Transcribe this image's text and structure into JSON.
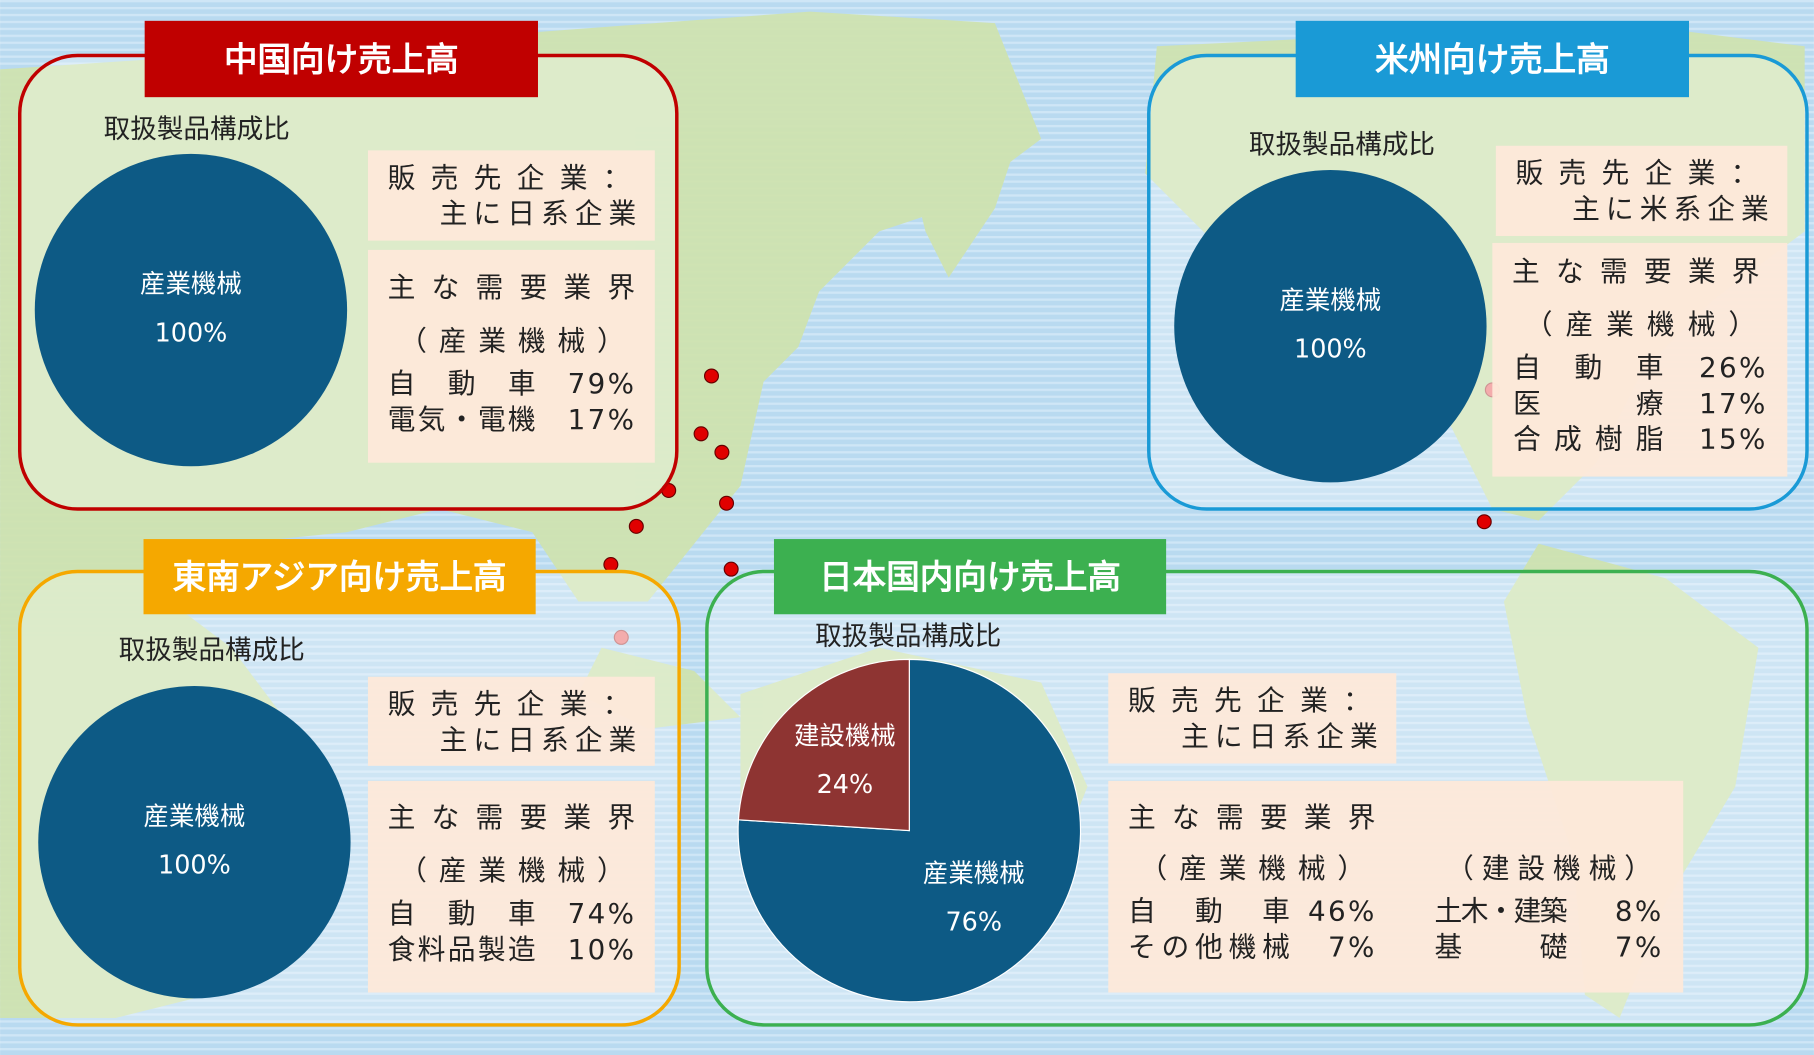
{
  "chart_data": [
    {
      "type": "pie",
      "title": "中国向け売上高",
      "title_color": "#c00000",
      "subtitle": "取扱製品構成比",
      "categories": [
        "産業機械"
      ],
      "values": [
        100
      ],
      "value_labels": [
        "100%"
      ],
      "colors": [
        "#0d5a85"
      ],
      "customer_label": "販売先企業：",
      "customer": "主に日系企業",
      "industry_heading": "主な需要業界",
      "industry_groups": [
        {
          "heading": "（産業機械）",
          "rows": [
            [
              "自動車",
              "79%"
            ],
            [
              "電気・電機",
              "17%"
            ]
          ]
        }
      ]
    },
    {
      "type": "pie",
      "title": "米州向け売上高",
      "title_color": "#1a9ad6",
      "subtitle": "取扱製品構成比",
      "categories": [
        "産業機械"
      ],
      "values": [
        100
      ],
      "value_labels": [
        "100%"
      ],
      "colors": [
        "#0d5a85"
      ],
      "customer_label": "販売先企業：",
      "customer": "主に米系企業",
      "industry_heading": "主な需要業界",
      "industry_groups": [
        {
          "heading": "（産業機械）",
          "rows": [
            [
              "自動車",
              "26%"
            ],
            [
              "医療",
              "17%"
            ],
            [
              "合成樹脂",
              "15%"
            ]
          ]
        }
      ]
    },
    {
      "type": "pie",
      "title": "東南アジア向け売上高",
      "title_color": "#f5a800",
      "subtitle": "取扱製品構成比",
      "categories": [
        "産業機械"
      ],
      "values": [
        100
      ],
      "value_labels": [
        "100%"
      ],
      "colors": [
        "#0d5a85"
      ],
      "customer_label": "販売先企業：",
      "customer": "主に日系企業",
      "industry_heading": "主な需要業界",
      "industry_groups": [
        {
          "heading": "（産業機械）",
          "rows": [
            [
              "自動車",
              "74%"
            ],
            [
              "食料品製造",
              "10%"
            ]
          ]
        }
      ]
    },
    {
      "type": "pie",
      "title": "日本国内向け売上高",
      "title_color": "#3cb050",
      "subtitle": "取扱製品構成比",
      "categories": [
        "産業機械",
        "建設機械"
      ],
      "values": [
        76,
        24
      ],
      "value_labels": [
        "76%",
        "24%"
      ],
      "colors": [
        "#0d5a85",
        "#8e3432"
      ],
      "customer_label": "販売先企業：",
      "customer": "主に日系企業",
      "industry_heading": "主な需要業界",
      "industry_groups": [
        {
          "heading": "（産業機械）",
          "rows": [
            [
              "自動車",
              "46%"
            ],
            [
              "その他機械",
              "7%"
            ]
          ]
        },
        {
          "heading": "（建設機械）",
          "rows": [
            [
              "土木・建築",
              "8%"
            ],
            [
              "基礎",
              "7%"
            ]
          ]
        }
      ]
    }
  ]
}
